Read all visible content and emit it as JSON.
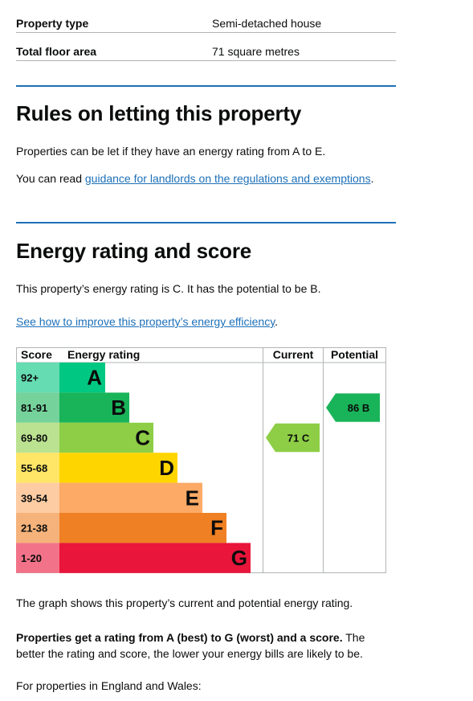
{
  "summary": [
    {
      "key": "Property type",
      "value": "Semi-detached house"
    },
    {
      "key": "Total floor area",
      "value": "71 square metres"
    }
  ],
  "letting": {
    "heading": "Rules on letting this property",
    "para1": "Properties can be let if they have an energy rating from A to E.",
    "para2_prefix": "You can read ",
    "para2_link": "guidance for landlords on the regulations and exemptions",
    "para2_suffix": "."
  },
  "energy": {
    "heading": "Energy rating and score",
    "para1": "This property’s energy rating is C. It has the potential to be B.",
    "improve_link": "See how to improve this property’s energy efficiency",
    "improve_suffix": ".",
    "graph_caption": "The graph shows this property’s current and potential energy rating.",
    "rating_bold": "Properties get a rating from A (best) to G (worst) and a score.",
    "rating_rest": " The better the rating and score, the lower your energy bills are likely to be.",
    "england_wales": "For properties in England and Wales:"
  },
  "chart_data": {
    "type": "table",
    "headers": {
      "score": "Score",
      "rating": "Energy rating",
      "current": "Current",
      "potential": "Potential"
    },
    "bands": [
      {
        "range": "92+",
        "letter": "A",
        "color": "#00c781",
        "range_bg": "#66dcb3"
      },
      {
        "range": "81-91",
        "letter": "B",
        "color": "#19b459",
        "range_bg": "#75d29b"
      },
      {
        "range": "69-80",
        "letter": "C",
        "color": "#8dce46",
        "range_bg": "#bbe290"
      },
      {
        "range": "55-68",
        "letter": "D",
        "color": "#ffd500",
        "range_bg": "#ffe666"
      },
      {
        "range": "39-54",
        "letter": "E",
        "color": "#fcaa65",
        "range_bg": "#fdcca3"
      },
      {
        "range": "21-38",
        "letter": "F",
        "color": "#ef8023",
        "range_bg": "#f5b37b"
      },
      {
        "range": "1-20",
        "letter": "G",
        "color": "#e9153b",
        "range_bg": "#f27389"
      }
    ],
    "current": {
      "score": 71,
      "letter": "C",
      "label": "71 C",
      "color": "#8dce46"
    },
    "potential": {
      "score": 86,
      "letter": "B",
      "label": "86 B",
      "color": "#19b459"
    }
  }
}
